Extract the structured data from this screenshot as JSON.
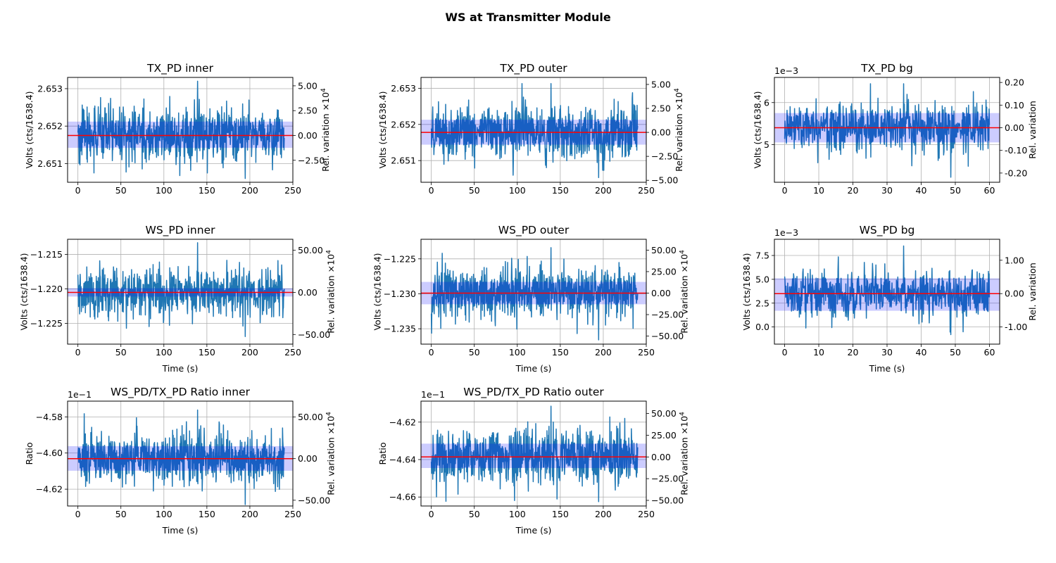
{
  "figure": {
    "suptitle": "WS at Transmitter Module"
  },
  "style": {
    "line_color": "#1f77b4",
    "mean_color": "#ff0000",
    "band_color": "#0000ff",
    "band_alpha": 0.2
  },
  "chart_data": [
    {
      "id": "tx-inner",
      "type": "line",
      "title": "TX_PD inner",
      "xlabel": "",
      "ylabel": "Volts (cts/1638.4)",
      "y2label": "Rel. variation ×10^4",
      "xlim": [
        -12,
        250
      ],
      "ylim": [
        2.6505,
        2.6533
      ],
      "xticks": [
        0,
        50,
        100,
        150,
        200,
        250
      ],
      "yticks": [
        2.651,
        2.652,
        2.653
      ],
      "ytick_labels": [
        "2.651",
        "2.652",
        "2.653"
      ],
      "y2ticks": [
        -2.5,
        0,
        2.5,
        5
      ],
      "y2tick_labels": [
        "−2.50",
        "0.00",
        "2.50",
        "5.00"
      ],
      "y2_factor": 10000,
      "y2_inverted": false,
      "offset_text": "",
      "mean": 2.65175,
      "band": [
        2.65142,
        2.65212
      ],
      "series": {
        "x_range": [
          0,
          240
        ],
        "n": 720,
        "mean": 2.65175,
        "sd": 0.00035,
        "min": 2.6506,
        "max": 2.6532
      }
    },
    {
      "id": "tx-outer",
      "type": "line",
      "title": "TX_PD outer",
      "xlabel": "",
      "ylabel": "Volts (cts/1638.4)",
      "y2label": "Rel. variation ×10^4",
      "xlim": [
        -12,
        250
      ],
      "ylim": [
        2.6504,
        2.6533
      ],
      "xticks": [
        0,
        50,
        100,
        150,
        200,
        250
      ],
      "yticks": [
        2.651,
        2.652,
        2.653
      ],
      "ytick_labels": [
        "2.651",
        "2.652",
        "2.653"
      ],
      "y2ticks": [
        -5,
        -2.5,
        0,
        2.5,
        5
      ],
      "y2tick_labels": [
        "−5.00",
        "−2.50",
        "0.00",
        "2.50",
        "5.00"
      ],
      "y2_factor": 10000,
      "y2_inverted": false,
      "offset_text": "",
      "mean": 2.65178,
      "band": [
        2.65144,
        2.65213
      ],
      "series": {
        "x_range": [
          0,
          240
        ],
        "n": 720,
        "mean": 2.65178,
        "sd": 0.00036,
        "min": 2.65053,
        "max": 2.65313
      }
    },
    {
      "id": "tx-bg",
      "type": "line",
      "title": "TX_PD bg",
      "xlabel": "",
      "ylabel": "Volts (cts/1638.4)",
      "y2label": "Rel. variation",
      "xlim": [
        -3,
        63
      ],
      "ylim": [
        4.1,
        6.6
      ],
      "xticks": [
        0,
        10,
        20,
        30,
        40,
        50,
        60
      ],
      "yticks": [
        5,
        6
      ],
      "ytick_labels": [
        "5",
        "6"
      ],
      "y2ticks": [
        -0.2,
        -0.1,
        0,
        0.1,
        0.2
      ],
      "y2tick_labels": [
        "-0.20",
        "-0.10",
        "0.00",
        "0.10",
        "0.20"
      ],
      "y2_factor": 1,
      "y2_inverted": false,
      "offset_text": "1e−3",
      "mean": 5.4,
      "band": [
        5.05,
        5.75
      ],
      "series": {
        "x_range": [
          0,
          60
        ],
        "n": 600,
        "mean": 5.4,
        "sd": 0.28,
        "min": 4.22,
        "max": 6.45
      }
    },
    {
      "id": "ws-inner",
      "type": "line",
      "title": "WS_PD inner",
      "xlabel": "Time (s)",
      "ylabel": "Volts (cts/1638.4)",
      "y2label": "Rel. variation ×10^4",
      "xlim": [
        -12,
        250
      ],
      "ylim": [
        -1.228,
        -1.2128
      ],
      "xticks": [
        0,
        50,
        100,
        150,
        200,
        250
      ],
      "yticks": [
        -1.225,
        -1.22,
        -1.215
      ],
      "ytick_labels": [
        "−1.225",
        "−1.220",
        "−1.215"
      ],
      "y2ticks": [
        -50,
        0,
        50
      ],
      "y2tick_labels": [
        "−50.00",
        "0.00",
        "50.00"
      ],
      "y2_factor": 10000,
      "y2_inverted": true,
      "offset_text": "",
      "mean": -1.2205,
      "band": [
        -1.2211,
        -1.2199
      ],
      "series": {
        "x_range": [
          0,
          240
        ],
        "n": 720,
        "mean": -1.2205,
        "sd": 0.0017,
        "min": -1.2269,
        "max": -1.2133
      }
    },
    {
      "id": "ws-outer",
      "type": "line",
      "title": "WS_PD outer",
      "xlabel": "Time (s)",
      "ylabel": "Volts (cts/1638.4)",
      "y2label": "Rel. variation ×10^4",
      "xlim": [
        -12,
        250
      ],
      "ylim": [
        -1.2372,
        -1.2222
      ],
      "xticks": [
        0,
        50,
        100,
        150,
        200,
        250
      ],
      "yticks": [
        -1.235,
        -1.23,
        -1.225
      ],
      "ytick_labels": [
        "−1.235",
        "−1.230",
        "−1.225"
      ],
      "y2ticks": [
        -50,
        -25,
        0,
        25,
        50
      ],
      "y2tick_labels": [
        "−50.00",
        "−25.00",
        "0.00",
        "25.00",
        "50.00"
      ],
      "y2_factor": 10000,
      "y2_inverted": true,
      "offset_text": "",
      "mean": -1.2299,
      "band": [
        -1.2315,
        -1.2283
      ],
      "series": {
        "x_range": [
          0,
          240
        ],
        "n": 720,
        "mean": -1.2299,
        "sd": 0.0017,
        "min": -1.2366,
        "max": -1.2234
      }
    },
    {
      "id": "ws-bg",
      "type": "line",
      "title": "WS_PD bg",
      "xlabel": "Time (s)",
      "ylabel": "Volts (cts/1638.4)",
      "y2label": "Rel. variation",
      "xlim": [
        -3,
        63
      ],
      "ylim": [
        -1.8,
        9.2
      ],
      "xticks": [
        0,
        10,
        20,
        30,
        40,
        50,
        60
      ],
      "yticks": [
        0,
        2.5,
        5,
        7.5
      ],
      "ytick_labels": [
        "0.0",
        "2.5",
        "5.0",
        "7.5"
      ],
      "y2ticks": [
        -1,
        0,
        1
      ],
      "y2tick_labels": [
        "-1.00",
        "0.00",
        "1.00"
      ],
      "y2_factor": 1,
      "y2_inverted": false,
      "offset_text": "1e−3",
      "mean": 3.5,
      "band": [
        1.7,
        5.1
      ],
      "series": {
        "x_range": [
          0,
          60
        ],
        "n": 600,
        "mean": 3.5,
        "sd": 1.2,
        "min": -0.8,
        "max": 8.5
      }
    },
    {
      "id": "ratio-inner",
      "type": "line",
      "title": "WS_PD/TX_PD Ratio inner",
      "xlabel": "Time (s)",
      "ylabel": "Ratio",
      "y2label": "Rel. variation ×10^4",
      "xlim": [
        -12,
        250
      ],
      "ylim": [
        -4.6293,
        -4.5713
      ],
      "xticks": [
        0,
        50,
        100,
        150,
        200,
        250
      ],
      "yticks": [
        -4.62,
        -4.6,
        -4.58
      ],
      "ytick_labels": [
        "−4.62",
        "−4.60",
        "−4.58"
      ],
      "y2ticks": [
        -50,
        0,
        50
      ],
      "y2tick_labels": [
        "−50.00",
        "0.00",
        "50.00"
      ],
      "y2_factor": 10000,
      "y2_inverted": true,
      "offset_text": "1e−1",
      "mean": -4.6031,
      "band": [
        -4.6098,
        -4.5962
      ],
      "series": {
        "x_range": [
          0,
          240
        ],
        "n": 720,
        "mean": -4.6031,
        "sd": 0.0068,
        "min": -4.6285,
        "max": -4.5762
      }
    },
    {
      "id": "ratio-outer",
      "type": "line",
      "title": "WS_PD/TX_PD Ratio outer",
      "xlabel": "Time (s)",
      "ylabel": "Ratio",
      "y2label": "Rel. variation ×10^4",
      "xlim": [
        -12,
        250
      ],
      "ylim": [
        -4.6648,
        -4.6088
      ],
      "xticks": [
        0,
        50,
        100,
        150,
        200,
        250
      ],
      "yticks": [
        -4.66,
        -4.64,
        -4.62
      ],
      "ytick_labels": [
        "−4.66",
        "−4.64",
        "−4.62"
      ],
      "y2ticks": [
        -50,
        -25,
        0,
        25,
        50
      ],
      "y2tick_labels": [
        "−50.00",
        "−25.00",
        "0.00",
        "25.00",
        "50.00"
      ],
      "y2_factor": 10000,
      "y2_inverted": true,
      "offset_text": "1e−1",
      "mean": -4.6386,
      "band": [
        -4.6445,
        -4.6315
      ],
      "series": {
        "x_range": [
          0,
          240
        ],
        "n": 720,
        "mean": -4.6386,
        "sd": 0.0075,
        "min": -4.6625,
        "max": -4.6115
      }
    }
  ]
}
